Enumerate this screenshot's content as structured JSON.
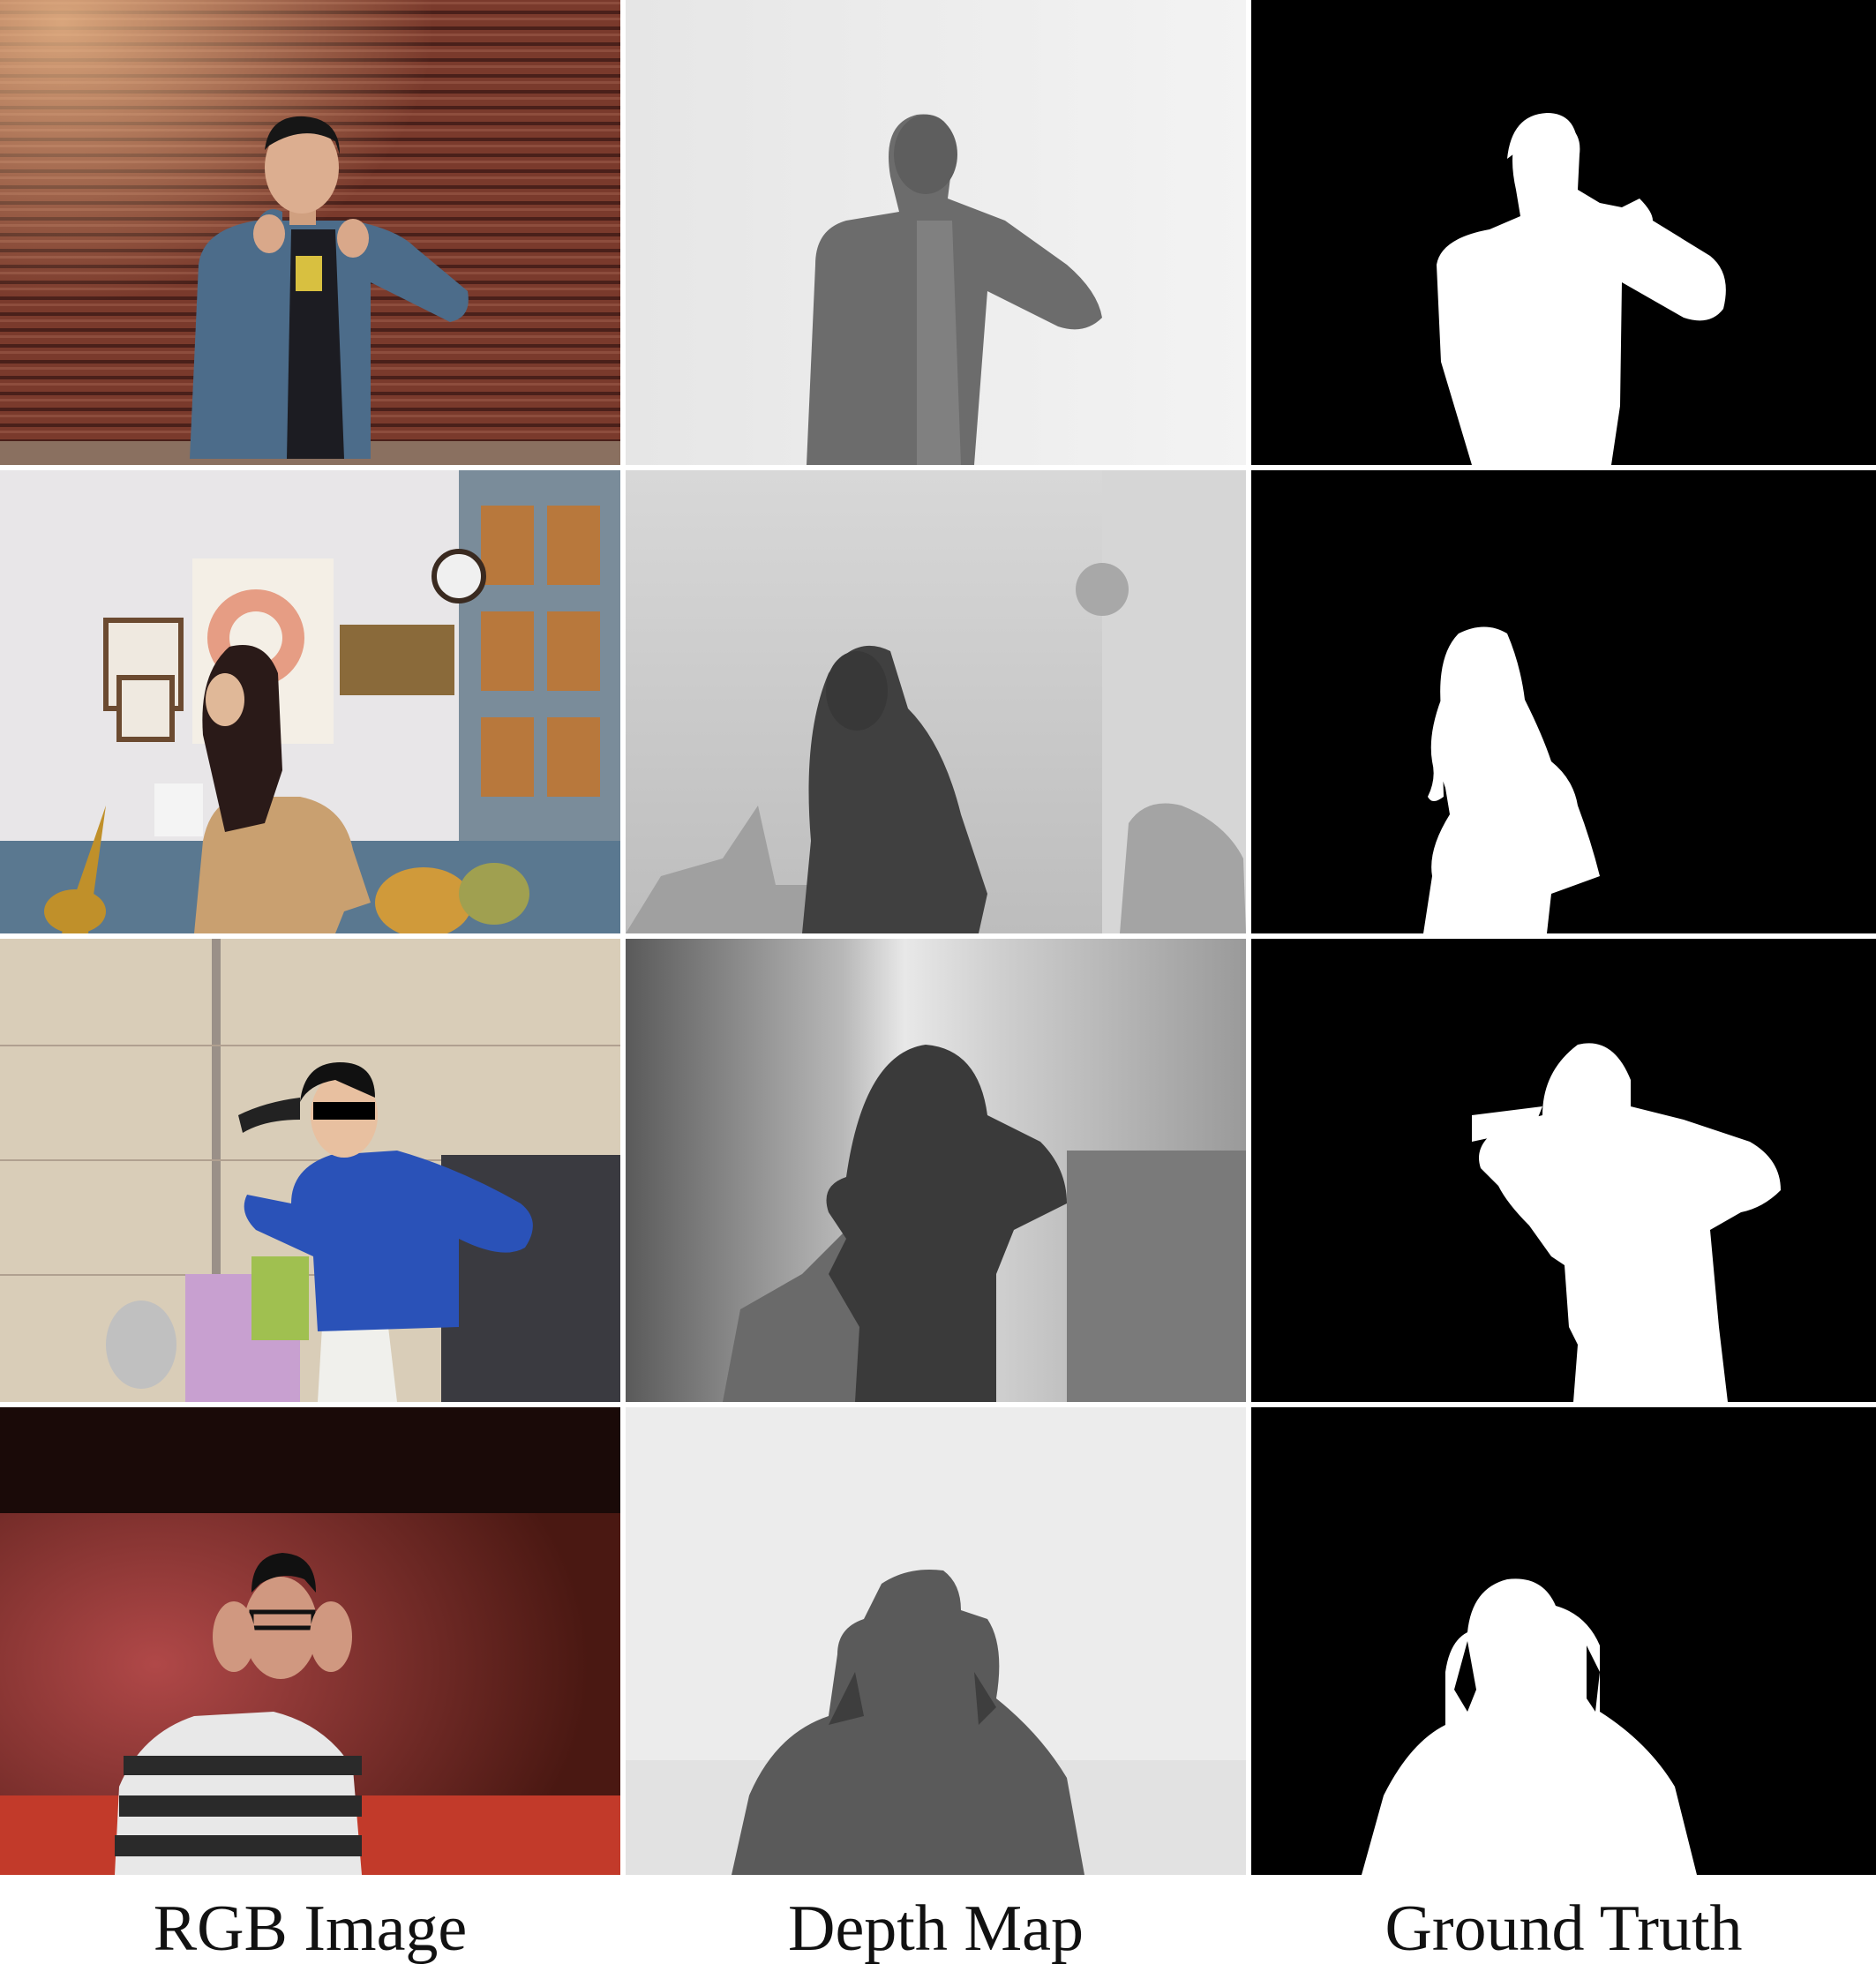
{
  "columns": [
    {
      "key": "rgb",
      "label": "RGB Image"
    },
    {
      "key": "depth",
      "label": "Depth Map"
    },
    {
      "key": "gt",
      "label": "Ground Truth"
    }
  ],
  "rows": [
    {
      "scene": "man in blue hoodie before striped shutter"
    },
    {
      "scene": "woman with long hair in decorated room"
    },
    {
      "scene": "woman in blue sweatshirt holding hair"
    },
    {
      "scene": "man adjusting glasses in red room"
    }
  ]
}
